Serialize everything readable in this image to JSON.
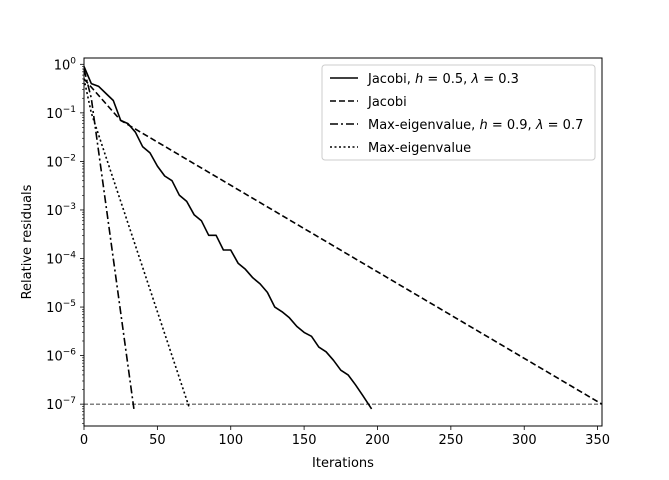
{
  "chart_data": {
    "type": "line",
    "title": "",
    "xlabel": "Iterations",
    "ylabel": "Relative residuals",
    "xlim": [
      0,
      353
    ],
    "ylim_log10": [
      -7.45,
      0.13
    ],
    "y_scale": "log",
    "grid": false,
    "legend_placement": "top-right",
    "xticks": [
      0,
      50,
      100,
      150,
      200,
      250,
      300,
      350
    ],
    "xtick_labels": [
      "0",
      "50",
      "100",
      "150",
      "200",
      "250",
      "300",
      "350"
    ],
    "yticks": [
      1,
      0.1,
      0.01,
      0.001,
      0.0001,
      1e-05,
      1e-06,
      1e-07
    ],
    "ytick_labels": [
      {
        "base": "10",
        "exp": "0"
      },
      {
        "base": "10",
        "exp": "−1"
      },
      {
        "base": "10",
        "exp": "−2"
      },
      {
        "base": "10",
        "exp": "−3"
      },
      {
        "base": "10",
        "exp": "−4"
      },
      {
        "base": "10",
        "exp": "−5"
      },
      {
        "base": "10",
        "exp": "−6"
      },
      {
        "base": "10",
        "exp": "−7"
      }
    ],
    "reference_line": {
      "y": 1e-07,
      "style": "dashed",
      "color": "#000000"
    },
    "series": [
      {
        "name": "Jacobi, h = 0.5, λ = 0.3",
        "legend_parts": [
          "Jacobi, ",
          "h",
          " = 0.5, ",
          "λ",
          " = 0.3"
        ],
        "dash": "solid",
        "color": "#000000",
        "x": [
          0,
          5,
          10,
          15,
          20,
          25,
          30,
          35,
          40,
          45,
          50,
          55,
          60,
          65,
          70,
          75,
          80,
          85,
          90,
          95,
          100,
          105,
          110,
          115,
          120,
          125,
          130,
          135,
          140,
          145,
          150,
          155,
          160,
          165,
          170,
          175,
          180,
          185,
          190,
          196
        ],
        "y": [
          0.9,
          0.4,
          0.35,
          0.25,
          0.18,
          0.07,
          0.06,
          0.04,
          0.02,
          0.015,
          0.008,
          0.005,
          0.004,
          0.002,
          0.0015,
          0.0008,
          0.0006,
          0.0003,
          0.0003,
          0.00015,
          0.00015,
          8e-05,
          6e-05,
          4e-05,
          3e-05,
          2e-05,
          1e-05,
          8e-06,
          6e-06,
          4e-06,
          3e-06,
          2.5e-06,
          1.5e-06,
          1.2e-06,
          8e-07,
          5e-07,
          4e-07,
          2.5e-07,
          1.5e-07,
          8e-08
        ]
      },
      {
        "name": "Jacobi",
        "legend_parts": [
          "Jacobi"
        ],
        "dash": "dashed",
        "color": "#000000",
        "x": [
          0,
          25,
          353
        ],
        "y": [
          0.5,
          0.07,
          1e-07
        ]
      },
      {
        "name": "Max-eigenvalue, h = 0.9, λ = 0.7",
        "legend_parts": [
          "Max-eigenvalue, ",
          "h",
          " = 0.9, ",
          "λ",
          " = 0.7"
        ],
        "dash": "dashdot",
        "color": "#000000",
        "x": [
          0,
          5,
          34
        ],
        "y": [
          0.8,
          0.2,
          8e-08
        ]
      },
      {
        "name": "Max-eigenvalue",
        "legend_parts": [
          "Max-eigenvalue"
        ],
        "dash": "dotted",
        "color": "#000000",
        "x": [
          0,
          5,
          72
        ],
        "y": [
          0.5,
          0.1,
          8e-08
        ]
      }
    ]
  }
}
